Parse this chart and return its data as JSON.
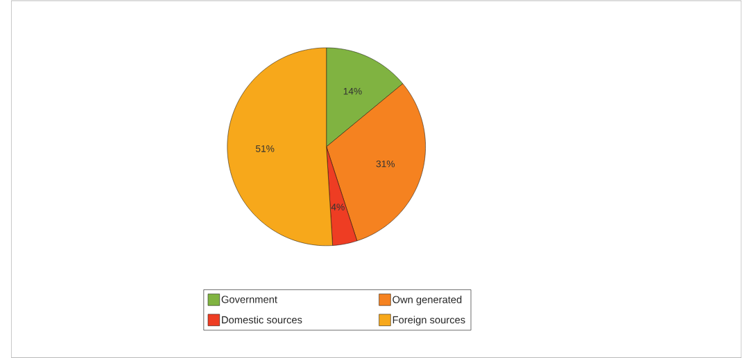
{
  "chart_data": {
    "type": "pie",
    "categories": [
      "Government",
      "Own generated",
      "Domestic sources",
      "Foreign sources"
    ],
    "values": [
      14,
      31,
      4,
      51
    ],
    "value_labels": [
      "14%",
      "31%",
      "4%",
      "51%"
    ],
    "colors": [
      "#80b341",
      "#f58220",
      "#ee3d23",
      "#f7a81b"
    ],
    "legend": "bottom"
  }
}
